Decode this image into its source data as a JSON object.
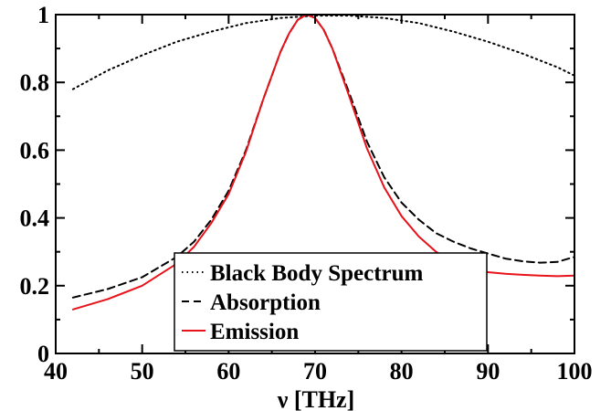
{
  "chart_data": {
    "type": "line",
    "title": "",
    "xlabel": "ν [THz]",
    "ylabel": "",
    "xlim": [
      40,
      100
    ],
    "ylim": [
      0,
      1
    ],
    "xticks": [
      40,
      50,
      60,
      70,
      80,
      90,
      100
    ],
    "yticks": [
      0,
      0.2,
      0.4,
      0.6,
      0.8,
      1
    ],
    "xtick_labels": [
      "40",
      "50",
      "60",
      "70",
      "80",
      "90",
      "100"
    ],
    "ytick_labels": [
      "0",
      "0.2",
      "0.4",
      "0.6",
      "0.8",
      "1"
    ],
    "grid": false,
    "legend_position": "bottom-center",
    "series": [
      {
        "name": "Black Body Spectrum",
        "color": "#000000",
        "style": "dotted",
        "x": [
          42,
          46,
          50,
          54,
          58,
          62,
          66,
          70,
          74,
          78,
          82,
          86,
          90,
          94,
          98,
          100
        ],
        "y": [
          0.78,
          0.835,
          0.88,
          0.92,
          0.95,
          0.975,
          0.99,
          0.997,
          0.997,
          0.99,
          0.975,
          0.95,
          0.92,
          0.885,
          0.845,
          0.82
        ]
      },
      {
        "name": "Absorption",
        "color": "#000000",
        "style": "dashed",
        "x": [
          42,
          46,
          50,
          54,
          56,
          58,
          60,
          62,
          64,
          66,
          67,
          68,
          69,
          70,
          71,
          72,
          74,
          76,
          78,
          80,
          82,
          84,
          86,
          88,
          90,
          92,
          94,
          96,
          98,
          100
        ],
        "y": [
          0.165,
          0.19,
          0.225,
          0.285,
          0.33,
          0.395,
          0.48,
          0.6,
          0.75,
          0.89,
          0.945,
          0.985,
          1.0,
          0.99,
          0.955,
          0.9,
          0.765,
          0.625,
          0.52,
          0.445,
          0.395,
          0.355,
          0.33,
          0.31,
          0.295,
          0.28,
          0.272,
          0.268,
          0.27,
          0.285
        ]
      },
      {
        "name": "Emission",
        "color": "#e8121b",
        "style": "solid",
        "x": [
          42,
          46,
          50,
          54,
          56,
          58,
          60,
          62,
          64,
          66,
          67,
          68,
          69,
          70,
          71,
          72,
          74,
          76,
          78,
          80,
          82,
          84,
          86,
          88,
          90,
          92,
          94,
          96,
          98,
          100
        ],
        "y": [
          0.13,
          0.16,
          0.2,
          0.265,
          0.315,
          0.385,
          0.47,
          0.595,
          0.75,
          0.89,
          0.945,
          0.985,
          1.0,
          0.99,
          0.955,
          0.9,
          0.755,
          0.605,
          0.49,
          0.405,
          0.345,
          0.3,
          0.27,
          0.25,
          0.24,
          0.235,
          0.232,
          0.23,
          0.228,
          0.23
        ]
      }
    ]
  }
}
